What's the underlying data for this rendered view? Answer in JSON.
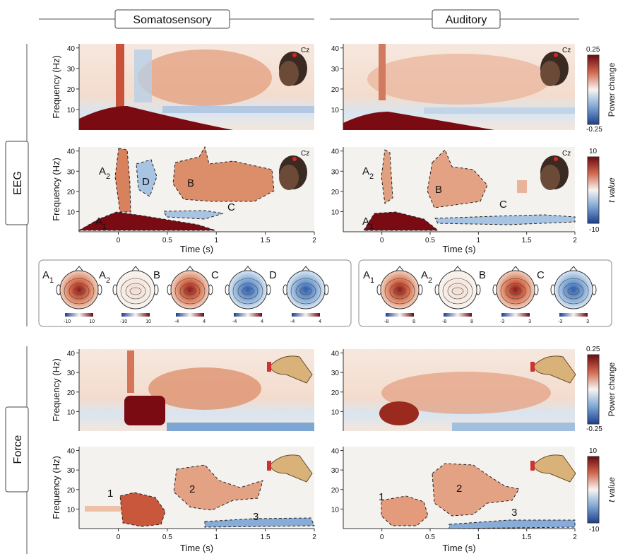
{
  "columns": {
    "left": "Somatosensory",
    "right": "Auditory"
  },
  "rows": {
    "eeg": "EEG",
    "force": "Force"
  },
  "axes": {
    "ylabel": "Frequency (Hz)",
    "xlabel": "Time (s)",
    "yticks": [
      "10",
      "20",
      "30",
      "40"
    ],
    "xticks": [
      "0",
      "0.5",
      "1",
      "1.5",
      "2"
    ]
  },
  "electrode_label": "Cz",
  "colorbars": {
    "power": {
      "label": "Power change",
      "max": "0.25",
      "min": "-0.25"
    },
    "tvalue": {
      "label": "t value",
      "max": "10",
      "min": "-10"
    }
  },
  "eeg_cluster_labels": {
    "left": [
      "A1",
      "A2",
      "B",
      "C",
      "D"
    ],
    "right": [
      "A1",
      "A2",
      "B",
      "C"
    ]
  },
  "force_cluster_labels": {
    "left": [
      "1",
      "2",
      "3"
    ],
    "right": [
      "1",
      "2",
      "3"
    ]
  },
  "topomaps": {
    "left": [
      {
        "label": "A1",
        "min": "-10",
        "max": "10",
        "tone": "red"
      },
      {
        "label": "A2",
        "min": "-10",
        "max": "10",
        "tone": "white"
      },
      {
        "label": "B",
        "min": "-4",
        "max": "4",
        "tone": "red"
      },
      {
        "label": "C",
        "min": "-4",
        "max": "4",
        "tone": "blue"
      },
      {
        "label": "D",
        "min": "-4",
        "max": "4",
        "tone": "blue"
      }
    ],
    "right": [
      {
        "label": "A1",
        "min": "-8",
        "max": "8",
        "tone": "red"
      },
      {
        "label": "A2",
        "min": "-8",
        "max": "8",
        "tone": "white"
      },
      {
        "label": "B",
        "min": "-3",
        "max": "3",
        "tone": "red"
      },
      {
        "label": "C",
        "min": "-3",
        "max": "3",
        "tone": "blue"
      }
    ]
  },
  "colors": {
    "red": "#b2302a",
    "blue": "#3b6fb5",
    "neutral": "#f4f2ef",
    "dark_red": "#7a0b12"
  }
}
